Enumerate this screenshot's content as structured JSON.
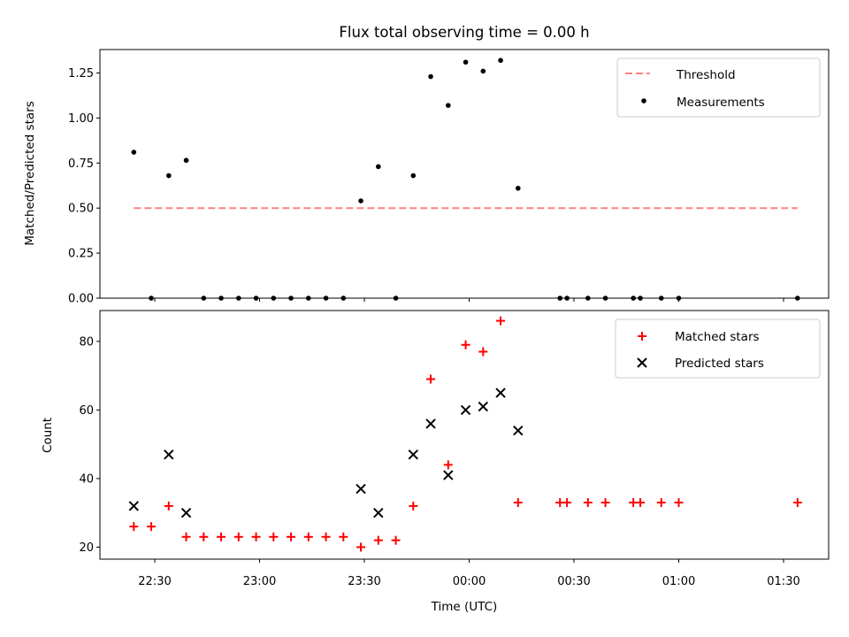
{
  "chart_data": [
    {
      "type": "scatter",
      "title": "Flux total observing time = 0.00 h",
      "xlabel": "",
      "ylabel": "Matched/Predicted stars",
      "ylim": [
        0,
        1.38
      ],
      "yticks": [
        "0.00",
        "0.25",
        "0.50",
        "0.75",
        "1.00",
        "1.25"
      ],
      "threshold": {
        "name": "Threshold",
        "value": 0.5,
        "x_start": "22:24",
        "x_end": "01:34",
        "color": "#ff8080",
        "style": "dashed"
      },
      "series": [
        {
          "name": "Measurements",
          "color": "#000000",
          "marker": "dot",
          "x": [
            "22:24",
            "22:29",
            "22:34",
            "22:39",
            "22:44",
            "22:49",
            "22:54",
            "22:59",
            "23:04",
            "23:09",
            "23:14",
            "23:19",
            "23:24",
            "23:29",
            "23:34",
            "23:39",
            "23:44",
            "23:49",
            "23:54",
            "23:59",
            "00:04",
            "00:09",
            "00:14",
            "00:26",
            "00:28",
            "00:34",
            "00:39",
            "00:47",
            "00:49",
            "00:55",
            "01:00",
            "01:34"
          ],
          "y": [
            0.81,
            0.0,
            0.68,
            0.765,
            0.0,
            0.0,
            0.0,
            0.0,
            0.0,
            0.0,
            0.0,
            0.0,
            0.0,
            0.54,
            0.73,
            0.0,
            0.68,
            1.23,
            1.07,
            1.31,
            1.26,
            1.32,
            0.61,
            0.0,
            0.0,
            0.0,
            0.0,
            0.0,
            0.0,
            0.0,
            0.0,
            0.0
          ]
        }
      ],
      "legend": {
        "position": "top-right",
        "entries": [
          "Threshold",
          "Measurements"
        ]
      }
    },
    {
      "type": "scatter",
      "title": "",
      "xlabel": "Time (UTC)",
      "ylabel": "Count",
      "ylim": [
        16.5,
        89
      ],
      "yticks": [
        "20",
        "40",
        "60",
        "80"
      ],
      "xticks": [
        "22:30",
        "23:00",
        "23:30",
        "00:00",
        "00:30",
        "01:00",
        "01:30"
      ],
      "series": [
        {
          "name": "Matched stars",
          "color": "#ff0000",
          "marker": "plus",
          "x": [
            "22:24",
            "22:29",
            "22:34",
            "22:39",
            "22:44",
            "22:49",
            "22:54",
            "22:59",
            "23:04",
            "23:09",
            "23:14",
            "23:19",
            "23:24",
            "23:29",
            "23:34",
            "23:39",
            "23:44",
            "23:49",
            "23:54",
            "23:59",
            "00:04",
            "00:09",
            "00:14",
            "00:26",
            "00:28",
            "00:34",
            "00:39",
            "00:47",
            "00:49",
            "00:55",
            "01:00",
            "01:34"
          ],
          "y": [
            26,
            26,
            32,
            23,
            23,
            23,
            23,
            23,
            23,
            23,
            23,
            23,
            23,
            20,
            22,
            22,
            32,
            69,
            44,
            79,
            77,
            86,
            33,
            33,
            33,
            33,
            33,
            33,
            33,
            33,
            33,
            33
          ]
        },
        {
          "name": "Predicted stars",
          "color": "#000000",
          "marker": "x",
          "x": [
            "22:24",
            "22:34",
            "22:39",
            "23:29",
            "23:34",
            "23:44",
            "23:49",
            "23:54",
            "23:59",
            "00:04",
            "00:09",
            "00:14"
          ],
          "y": [
            32,
            47,
            30,
            37,
            30,
            47,
            56,
            41,
            60,
            61,
            65,
            54
          ]
        }
      ],
      "legend": {
        "position": "top-right",
        "entries": [
          "Matched stars",
          "Predicted stars"
        ]
      }
    }
  ]
}
